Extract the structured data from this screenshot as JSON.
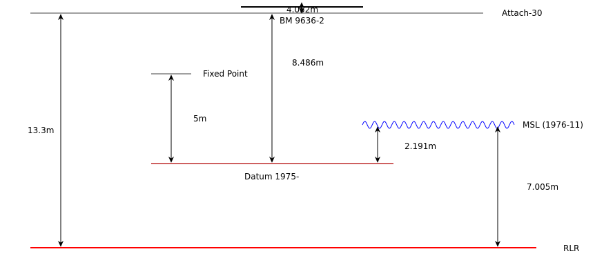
{
  "levels": {
    "attach": "Attach-30",
    "benchmark": "BM 9636-2",
    "benchmark_height": "4.052m",
    "fixed_point": "Fixed Point",
    "datum": "Datum 1975-",
    "msl": "MSL (1976-11)",
    "rlr": "RLR"
  },
  "measurements": {
    "total": "13.3m",
    "fixed_point_to_datum": "5m",
    "benchmark_to_datum": "8.486m",
    "datum_to_msl": "2.191m",
    "msl_to_rlr": "7.005m"
  },
  "colors": {
    "rlr_line": "#ff0000",
    "datum_line": "#b00000",
    "msl_wave": "#0000ff",
    "line": "#000000"
  }
}
